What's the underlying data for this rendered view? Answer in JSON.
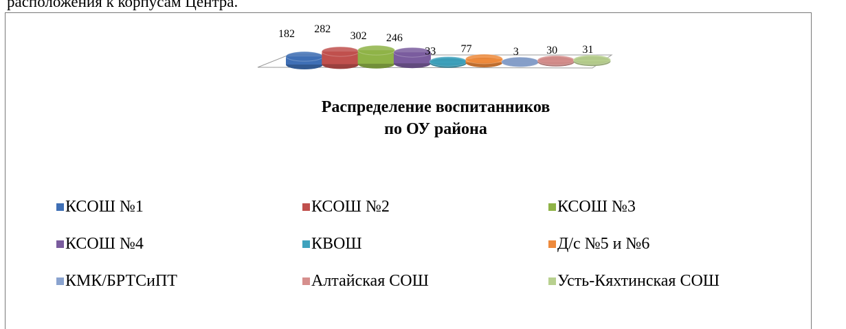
{
  "page_text": "расположения к корпусам Центра.",
  "chart_data": {
    "type": "bar3d",
    "title": "Распределение воспитанников\nпо ОУ района",
    "categories": [
      "КСОШ №1",
      "КСОШ №2",
      "КСОШ №3",
      "КСОШ №4",
      "КВОШ",
      "Д/с №5 и №6",
      "КМК/БРТСиПТ",
      "Алтайская СОШ",
      "Усть-Кяхтинская СОШ"
    ],
    "values": [
      182,
      282,
      302,
      246,
      33,
      77,
      3,
      30,
      31
    ],
    "colors": [
      "#3f6fb5",
      "#c0504d",
      "#8fb347",
      "#7a5c9e",
      "#3ea2bd",
      "#ee8a3c",
      "#8aa3cf",
      "#d68f8d",
      "#b8d08f"
    ],
    "legend": "bottom"
  }
}
